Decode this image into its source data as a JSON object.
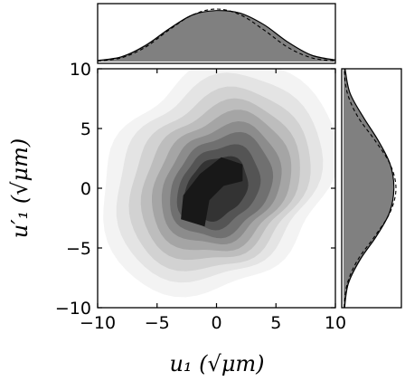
{
  "chart_data": [
    {
      "panel": "joint",
      "type": "heatmap",
      "description_of_marks": "filled density contours",
      "xlim": [
        -10,
        10
      ],
      "ylim": [
        -10,
        10
      ],
      "x_ticks": [
        -10,
        -5,
        0,
        5,
        10
      ],
      "y_ticks": [
        -10,
        -5,
        0,
        5,
        10
      ],
      "x_tick_labels": [
        "−10",
        "−5",
        "0",
        "5",
        "10"
      ],
      "y_tick_labels": [
        "−10",
        "−5",
        "0",
        "5",
        "10"
      ],
      "xlabel": "u₁ (√μm)",
      "ylabel": "u′₁ (√μm)",
      "grid": false,
      "levels": [
        {
          "level": 1,
          "fill": "#f3f3f3",
          "r": 9.6,
          "cx": 0.1,
          "cy": 0.9,
          "rot": 0
        },
        {
          "level": 2,
          "fill": "#e4e4e4",
          "r": 8.4,
          "cx": 0.1,
          "cy": 0.8,
          "rot": 0.4
        },
        {
          "level": 3,
          "fill": "#d2d2d2",
          "r": 7.4,
          "cx": 0.2,
          "cy": 0.6,
          "rot": 0.8
        },
        {
          "level": 4,
          "fill": "#bdbdbd",
          "r": 6.5,
          "cx": 0.3,
          "cy": 0.5,
          "rot": 1.2
        },
        {
          "level": 5,
          "fill": "#a5a5a5",
          "r": 5.7,
          "cx": 0.4,
          "cy": 0.4,
          "rot": 1.6
        },
        {
          "level": 6,
          "fill": "#8c8c8c",
          "r": 4.9,
          "cx": 0.4,
          "cy": 0.3,
          "rot": 2.0
        },
        {
          "level": 7,
          "fill": "#707070",
          "r": 4.2,
          "cx": 0.4,
          "cy": 0.2,
          "rot": 2.4
        },
        {
          "level": 8,
          "fill": "#545454",
          "r": 3.4,
          "cx": 0.2,
          "cy": 0.1,
          "rot": 2.8
        },
        {
          "level": 9,
          "fill": "#333333",
          "r": 2.6,
          "cx": 0.0,
          "cy": 0.0,
          "rot": 3.2
        }
      ],
      "core_fill": "#181818",
      "core_outline": [
        [
          -3.0,
          -2.6
        ],
        [
          -1.0,
          -3.2
        ],
        [
          -0.6,
          -1.0
        ],
        [
          0.6,
          0.2
        ],
        [
          2.2,
          0.6
        ],
        [
          2.2,
          2.0
        ],
        [
          0.4,
          2.6
        ],
        [
          -1.4,
          1.2
        ],
        [
          -2.8,
          -0.6
        ]
      ]
    },
    {
      "panel": "top-marginal",
      "type": "area",
      "variable": "u₁",
      "xlim": [
        -10,
        10
      ],
      "fill": "#808080",
      "x": [
        -10,
        -8,
        -6,
        -4,
        -2,
        0,
        2,
        4,
        6,
        8,
        10
      ],
      "histogram_density": [
        0.02,
        0.1,
        0.32,
        0.63,
        0.9,
        0.96,
        0.93,
        0.69,
        0.38,
        0.12,
        0.03
      ],
      "solid_fit": [
        0.02,
        0.09,
        0.3,
        0.62,
        0.89,
        0.97,
        0.92,
        0.7,
        0.37,
        0.12,
        0.03
      ],
      "dashed_fit": [
        0.01,
        0.07,
        0.27,
        0.6,
        0.89,
        1.0,
        0.89,
        0.6,
        0.27,
        0.07,
        0.01
      ],
      "ticks_shown": false
    },
    {
      "panel": "right-marginal",
      "type": "area",
      "variable": "u′₁",
      "ylim": [
        -10,
        10
      ],
      "fill": "#808080",
      "y": [
        -10,
        -8,
        -6,
        -4,
        -2,
        0,
        2,
        4,
        6,
        8,
        10
      ],
      "histogram_density": [
        0.02,
        0.1,
        0.33,
        0.64,
        0.89,
        0.95,
        0.89,
        0.66,
        0.38,
        0.12,
        0.03
      ],
      "solid_fit": [
        0.02,
        0.09,
        0.31,
        0.63,
        0.88,
        0.96,
        0.89,
        0.66,
        0.37,
        0.12,
        0.03
      ],
      "dashed_fit": [
        0.01,
        0.07,
        0.27,
        0.6,
        0.89,
        1.0,
        0.89,
        0.6,
        0.27,
        0.07,
        0.01
      ],
      "ticks_shown": false
    }
  ]
}
